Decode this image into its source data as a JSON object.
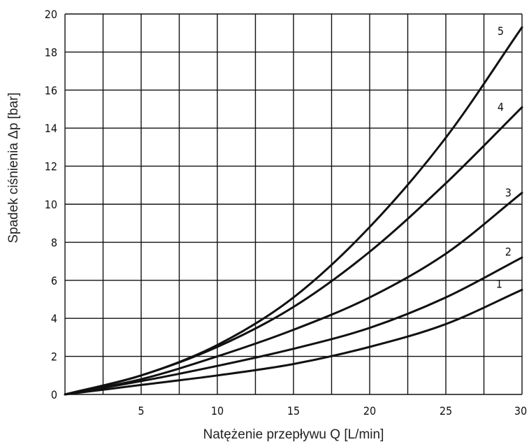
{
  "chart_data": {
    "type": "line",
    "xlabel": "Natężenie przepływu Q [L/min]",
    "ylabel": "Spadek ciśnienia Δp [bar]",
    "xlim": [
      0,
      30
    ],
    "ylim": [
      0,
      20
    ],
    "x_ticks": [
      "5",
      "10",
      "15",
      "20",
      "25",
      "30"
    ],
    "y_ticks": [
      "0",
      "2",
      "4",
      "6",
      "8",
      "10",
      "12",
      "14",
      "16",
      "18",
      "20"
    ],
    "grid": true,
    "series": [
      {
        "name": "1",
        "x": [
          0,
          5,
          10,
          15,
          20,
          25,
          30
        ],
        "y": [
          0,
          0.5,
          1.0,
          1.6,
          2.5,
          3.7,
          5.5
        ]
      },
      {
        "name": "2",
        "x": [
          0,
          5,
          10,
          15,
          20,
          25,
          30
        ],
        "y": [
          0,
          0.7,
          1.5,
          2.4,
          3.5,
          5.1,
          7.2
        ]
      },
      {
        "name": "3",
        "x": [
          0,
          5,
          10,
          15,
          20,
          25,
          30
        ],
        "y": [
          0,
          0.8,
          2.0,
          3.4,
          5.1,
          7.4,
          10.6
        ]
      },
      {
        "name": "4",
        "x": [
          0,
          5,
          10,
          15,
          20,
          25,
          30
        ],
        "y": [
          0,
          1.0,
          2.5,
          4.6,
          7.5,
          11.1,
          15.1
        ]
      },
      {
        "name": "5",
        "x": [
          0,
          5,
          10,
          15,
          20,
          25,
          30
        ],
        "y": [
          0,
          1.0,
          2.6,
          5.1,
          8.8,
          13.5,
          19.3
        ]
      }
    ]
  }
}
